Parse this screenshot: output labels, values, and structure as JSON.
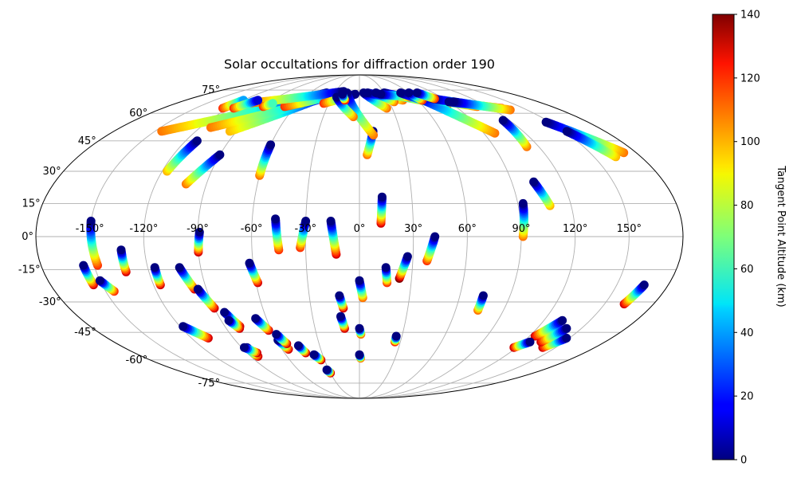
{
  "chart_data": {
    "type": "scatter",
    "projection": "mollweide",
    "title": "Solar occultations for diffraction order 190",
    "grid": true,
    "x_ticks": [
      "-150°",
      "-120°",
      "-90°",
      "-60°",
      "-30°",
      "0°",
      "30°",
      "60°",
      "90°",
      "120°",
      "150°"
    ],
    "y_ticks": [
      "-75°",
      "-60°",
      "-45°",
      "-30°",
      "-15°",
      "0°",
      "15°",
      "30°",
      "45°",
      "60°",
      "75°"
    ],
    "colorbar": {
      "label": "Tangent Point Altitude (km)",
      "colormap": "jet",
      "range": [
        0,
        140
      ],
      "ticks": [
        "0",
        "20",
        "40",
        "60",
        "80",
        "100",
        "120",
        "140"
      ]
    },
    "marker_size": 11,
    "tracks": [
      {
        "lon": [
          -150,
          -148
        ],
        "lat": [
          7,
          -13
        ],
        "alt": [
          0,
          120
        ]
      },
      {
        "lon": [
          -156,
          -155
        ],
        "lat": [
          -13,
          -22
        ],
        "alt": [
          0,
          130
        ]
      },
      {
        "lon": [
          -150,
          -145
        ],
        "lat": [
          -20,
          -25
        ],
        "alt": [
          0,
          120
        ]
      },
      {
        "lon": [
          -133,
          -133
        ],
        "lat": [
          -6,
          -16
        ],
        "alt": [
          0,
          130
        ]
      },
      {
        "lon": [
          -116,
          -116
        ],
        "lat": [
          -14,
          -22
        ],
        "alt": [
          0,
          130
        ]
      },
      {
        "lon": [
          -102,
          -97
        ],
        "lat": [
          -14,
          -24
        ],
        "alt": [
          0,
          130
        ]
      },
      {
        "lon": [
          -95,
          -90
        ],
        "lat": [
          -24,
          -33
        ],
        "alt": [
          0,
          130
        ]
      },
      {
        "lon": [
          -118,
          -108
        ],
        "lat": [
          -42,
          -48
        ],
        "alt": [
          0,
          130
        ]
      },
      {
        "lon": [
          -86,
          -84
        ],
        "lat": [
          -53,
          -58
        ],
        "alt": [
          0,
          130
        ]
      },
      {
        "lon": [
          -88,
          -82
        ],
        "lat": [
          -53,
          -56
        ],
        "alt": [
          0,
          130
        ]
      },
      {
        "lon": [
          -85,
          -80
        ],
        "lat": [
          -35,
          -42
        ],
        "alt": [
          0,
          130
        ]
      },
      {
        "lon": [
          -85,
          -81
        ],
        "lat": [
          -39,
          -43
        ],
        "alt": [
          0,
          130
        ]
      },
      {
        "lon": [
          -67,
          -62
        ],
        "lat": [
          -38,
          -44
        ],
        "alt": [
          0,
          130
        ]
      },
      {
        "lon": [
          -59,
          -55
        ],
        "lat": [
          -49,
          -54
        ],
        "alt": [
          0,
          130
        ]
      },
      {
        "lon": [
          -58,
          -54
        ],
        "lat": [
          -46,
          -51
        ],
        "alt": [
          0,
          130
        ]
      },
      {
        "lon": [
          -46,
          -43
        ],
        "lat": [
          -52,
          -56
        ],
        "alt": [
          0,
          130
        ]
      },
      {
        "lon": [
          -37,
          -33
        ],
        "lat": [
          -57,
          -60
        ],
        "alt": [
          0,
          130
        ]
      },
      {
        "lon": [
          -32,
          -30
        ],
        "lat": [
          -66,
          -68
        ],
        "alt": [
          0,
          130
        ]
      },
      {
        "lon": [
          -89,
          -90
        ],
        "lat": [
          2,
          -7
        ],
        "alt": [
          0,
          130
        ]
      },
      {
        "lon": [
          -62,
          -59
        ],
        "lat": [
          -12,
          -21
        ],
        "alt": [
          0,
          130
        ]
      },
      {
        "lon": [
          -47,
          -45
        ],
        "lat": [
          8,
          -6
        ],
        "alt": [
          0,
          120
        ]
      },
      {
        "lon": [
          -30,
          -33
        ],
        "lat": [
          7,
          -5
        ],
        "alt": [
          0,
          120
        ]
      },
      {
        "lon": [
          -16,
          -13
        ],
        "lat": [
          7,
          -8
        ],
        "alt": [
          0,
          130
        ]
      },
      {
        "lon": [
          -12,
          -10
        ],
        "lat": [
          -27,
          -33
        ],
        "alt": [
          0,
          130
        ]
      },
      {
        "lon": [
          -12,
          -10
        ],
        "lat": [
          -37,
          -43
        ],
        "alt": [
          0,
          130
        ]
      },
      {
        "lon": [
          0,
          2
        ],
        "lat": [
          -20,
          -28
        ],
        "alt": [
          0,
          110
        ]
      },
      {
        "lon": [
          0,
          1
        ],
        "lat": [
          -43,
          -46
        ],
        "alt": [
          0,
          110
        ]
      },
      {
        "lon": [
          0,
          1
        ],
        "lat": [
          -57,
          -59
        ],
        "alt": [
          0,
          110
        ]
      },
      {
        "lon": [
          15,
          16
        ],
        "lat": [
          -14,
          -21
        ],
        "alt": [
          0,
          120
        ]
      },
      {
        "lon": [
          27,
          23
        ],
        "lat": [
          -9,
          -19
        ],
        "alt": [
          0,
          140
        ]
      },
      {
        "lon": [
          26,
          26
        ],
        "lat": [
          -47,
          -50
        ],
        "alt": [
          0,
          120
        ]
      },
      {
        "lon": [
          42,
          38
        ],
        "lat": [
          0,
          -11
        ],
        "alt": [
          0,
          120
        ]
      },
      {
        "lon": [
          74,
          74
        ],
        "lat": [
          -27,
          -34
        ],
        "alt": [
          0,
          110
        ]
      },
      {
        "lon": [
          93,
          91
        ],
        "lat": [
          15,
          0
        ],
        "alt": [
          0,
          110
        ]
      },
      {
        "lon": [
          103,
          108
        ],
        "lat": [
          25,
          14
        ],
        "alt": [
          0,
          100
        ]
      },
      {
        "lon": [
          13,
          12
        ],
        "lat": [
          18,
          6
        ],
        "alt": [
          0,
          130
        ]
      },
      {
        "lon": [
          -60,
          -60
        ],
        "lat": [
          43,
          28
        ],
        "alt": [
          0,
          110
        ]
      },
      {
        "lon": [
          -90,
          -102
        ],
        "lat": [
          38,
          24
        ],
        "alt": [
          0,
          110
        ]
      },
      {
        "lon": [
          -112,
          -117
        ],
        "lat": [
          45,
          30
        ],
        "alt": [
          0,
          100
        ]
      },
      {
        "lon": [
          10,
          5
        ],
        "lat": [
          50,
          38
        ],
        "alt": [
          0,
          110
        ]
      },
      {
        "lon": [
          147,
          172
        ],
        "lat": [
          55,
          39
        ],
        "alt": [
          0,
          110
        ]
      },
      {
        "lon": [
          152,
          164
        ],
        "lat": [
          50,
          37
        ],
        "alt": [
          0,
          100
        ]
      },
      {
        "lon": [
          166,
          162
        ],
        "lat": [
          -22,
          -31
        ],
        "alt": [
          0,
          130
        ]
      },
      {
        "lon": [
          148,
          140
        ],
        "lat": [
          -48,
          -53
        ],
        "alt": [
          0,
          130
        ]
      },
      {
        "lon": [
          140,
          133
        ],
        "lat": [
          -43,
          -50
        ],
        "alt": [
          0,
          130
        ]
      },
      {
        "lon": [
          132,
          124
        ],
        "lat": [
          -39,
          -47
        ],
        "alt": [
          0,
          130
        ]
      },
      {
        "lon": [
          125,
          118
        ],
        "lat": [
          -50,
          -53
        ],
        "alt": [
          0,
          130
        ]
      },
      {
        "lon": [
          -40,
          -145
        ],
        "lat": [
          73,
          50
        ],
        "alt": [
          0,
          110
        ]
      },
      {
        "lon": [
          -35,
          -95
        ],
        "lat": [
          72,
          50
        ],
        "alt": [
          0,
          100
        ]
      },
      {
        "lon": [
          -28,
          -112
        ],
        "lat": [
          72,
          52
        ],
        "alt": [
          0,
          110
        ]
      },
      {
        "lon": [
          -20,
          -70
        ],
        "lat": [
          73,
          64
        ],
        "alt": [
          0,
          120
        ]
      },
      {
        "lon": [
          -20,
          -110
        ],
        "lat": [
          74,
          66
        ],
        "alt": [
          0,
          120
        ]
      },
      {
        "lon": [
          -85,
          -90
        ],
        "lat": [
          66,
          64
        ],
        "alt": [
          60,
          120
        ]
      },
      {
        "lon": [
          -120,
          -125
        ],
        "lat": [
          68,
          63
        ],
        "alt": [
          40,
          120
        ]
      },
      {
        "lon": [
          -105,
          -115
        ],
        "lat": [
          68,
          63
        ],
        "alt": [
          10,
          120
        ]
      },
      {
        "lon": [
          -5,
          -35
        ],
        "lat": [
          72,
          66
        ],
        "alt": [
          0,
          120
        ]
      },
      {
        "lon": [
          -15,
          10
        ],
        "lat": [
          73,
          48
        ],
        "alt": [
          0,
          110
        ]
      },
      {
        "lon": [
          -25,
          -5
        ],
        "lat": [
          70,
          58
        ],
        "alt": [
          0,
          110
        ]
      },
      {
        "lon": [
          -20,
          -15
        ],
        "lat": [
          72,
          68
        ],
        "alt": [
          0,
          120
        ]
      },
      {
        "lon": [
          5,
          25
        ],
        "lat": [
          73,
          63
        ],
        "alt": [
          0,
          110
        ]
      },
      {
        "lon": [
          10,
          45
        ],
        "lat": [
          73,
          68
        ],
        "alt": [
          0,
          110
        ]
      },
      {
        "lon": [
          30,
          70
        ],
        "lat": [
          73,
          67
        ],
        "alt": [
          0,
          110
        ]
      },
      {
        "lon": [
          20,
          35
        ],
        "lat": [
          73,
          67
        ],
        "alt": [
          0,
          110
        ]
      },
      {
        "lon": [
          25,
          55
        ],
        "lat": [
          72,
          70
        ],
        "alt": [
          0,
          110
        ]
      },
      {
        "lon": [
          50,
          80
        ],
        "lat": [
          73,
          63
        ],
        "alt": [
          0,
          110
        ]
      },
      {
        "lon": [
          60,
          98
        ],
        "lat": [
          72,
          49
        ],
        "alt": [
          0,
          110
        ]
      },
      {
        "lon": [
          65,
          110
        ],
        "lat": [
          70,
          64
        ],
        "alt": [
          0,
          110
        ]
      },
      {
        "lon": [
          78,
          128
        ],
        "lat": [
          69,
          63
        ],
        "alt": [
          0,
          110
        ]
      },
      {
        "lon": [
          90,
          130
        ],
        "lat": [
          67,
          63
        ],
        "alt": [
          0,
          120
        ]
      },
      {
        "lon": [
          95,
          135
        ],
        "lat": [
          67,
          62
        ],
        "alt": [
          0,
          110
        ]
      },
      {
        "lon": [
          115,
          112
        ],
        "lat": [
          56,
          42
        ],
        "alt": [
          0,
          110
        ]
      },
      {
        "lon": [
          60,
          65
        ],
        "lat": [
          73,
          68
        ],
        "alt": [
          0,
          120
        ]
      },
      {
        "lon": [
          70,
          80
        ],
        "lat": [
          73,
          69
        ],
        "alt": [
          0,
          120
        ]
      }
    ]
  }
}
